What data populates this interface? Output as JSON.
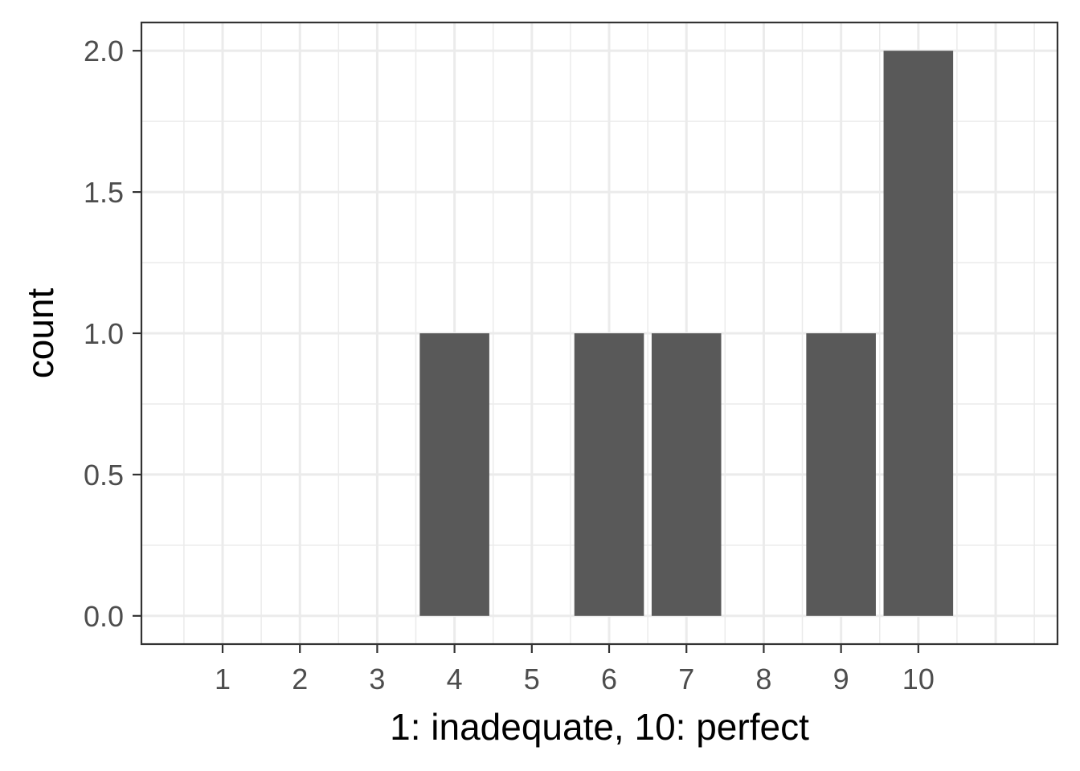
{
  "chart_data": {
    "type": "bar",
    "categories": [
      "1",
      "2",
      "3",
      "4",
      "5",
      "6",
      "7",
      "8",
      "9",
      "10"
    ],
    "values": [
      0,
      0,
      0,
      1,
      0,
      1,
      1,
      0,
      1,
      2
    ],
    "xlabel": "1: inadequate, 10: perfect",
    "ylabel": "count",
    "xlim": [
      -0.05,
      11.8
    ],
    "ylim": [
      -0.1,
      2.1
    ],
    "yticks": [
      "0.0",
      "0.5",
      "1.0",
      "1.5",
      "2.0"
    ],
    "grid": true,
    "bar_color": "#595959",
    "background": "#ffffff"
  }
}
